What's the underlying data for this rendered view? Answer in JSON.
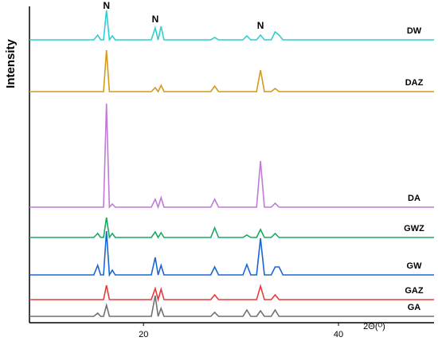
{
  "chart_data": {
    "type": "line",
    "y_label": "Intensity",
    "x_label": "2Θ(ᴼ)",
    "x": [
      8.3,
      14.9,
      15.3,
      15.6,
      15.9,
      16.2,
      16.5,
      16.8,
      17.1,
      20.8,
      21.2,
      21.5,
      21.8,
      22.1,
      26.9,
      27.3,
      27.7,
      30.2,
      30.6,
      31.0,
      31.6,
      32.0,
      32.4,
      33.1,
      33.5,
      33.9,
      34.3,
      49.8
    ],
    "xlim": [
      8.3,
      49.8
    ],
    "xticks": [
      20,
      40
    ],
    "ylim": [
      0,
      395
    ],
    "series": [
      {
        "name": "DW",
        "color": "#2ecfcf",
        "values": [
          355,
          355,
          361,
          355,
          355,
          392,
          355,
          360,
          355,
          355,
          370,
          355,
          372,
          355,
          355,
          358,
          355,
          355,
          360,
          355,
          355,
          361,
          355,
          355,
          365,
          361,
          355,
          355
        ]
      },
      {
        "name": "DAZ",
        "color": "#d49a1a",
        "values": [
          290,
          290,
          290,
          290,
          290,
          342,
          290,
          290,
          290,
          290,
          295,
          290,
          298,
          290,
          290,
          297,
          290,
          290,
          290,
          290,
          290,
          317,
          290,
          290,
          294,
          290,
          290,
          290
        ]
      },
      {
        "name": "DA",
        "color": "#c07ad8",
        "values": [
          145,
          145,
          145,
          145,
          145,
          275,
          145,
          149,
          145,
          145,
          155,
          145,
          157,
          145,
          145,
          155,
          145,
          145,
          145,
          145,
          145,
          203,
          145,
          145,
          150,
          145,
          145,
          145
        ]
      },
      {
        "name": "GWZ",
        "color": "#1aa860",
        "values": [
          107,
          107,
          112,
          107,
          107,
          132,
          107,
          112,
          107,
          107,
          114,
          107,
          113,
          107,
          107,
          119,
          107,
          107,
          110,
          107,
          107,
          117,
          107,
          107,
          112,
          107,
          107,
          107
        ]
      },
      {
        "name": "GW",
        "color": "#1a66d0",
        "values": [
          60,
          60,
          72,
          60,
          60,
          115,
          60,
          66,
          60,
          60,
          82,
          60,
          72,
          60,
          60,
          70,
          60,
          60,
          73,
          60,
          60,
          106,
          60,
          60,
          70,
          70,
          60,
          60
        ]
      },
      {
        "name": "GAZ",
        "color": "#e83a3a",
        "values": [
          29,
          29,
          29,
          29,
          29,
          47,
          29,
          29,
          29,
          29,
          43,
          29,
          42,
          29,
          29,
          35,
          29,
          29,
          29,
          29,
          29,
          46,
          29,
          29,
          35,
          29,
          29,
          29
        ]
      },
      {
        "name": "GA",
        "color": "#707070",
        "values": [
          8,
          8,
          12,
          8,
          8,
          22,
          8,
          8,
          8,
          8,
          34,
          8,
          18,
          8,
          8,
          13,
          8,
          8,
          16,
          8,
          8,
          15,
          8,
          8,
          16,
          8,
          8,
          8
        ]
      }
    ],
    "annotations": [
      {
        "text": "N",
        "x": 16.2,
        "y": 397
      },
      {
        "text": "N",
        "x": 21.2,
        "y": 380
      },
      {
        "text": "N",
        "x": 32.0,
        "y": 372
      }
    ]
  }
}
